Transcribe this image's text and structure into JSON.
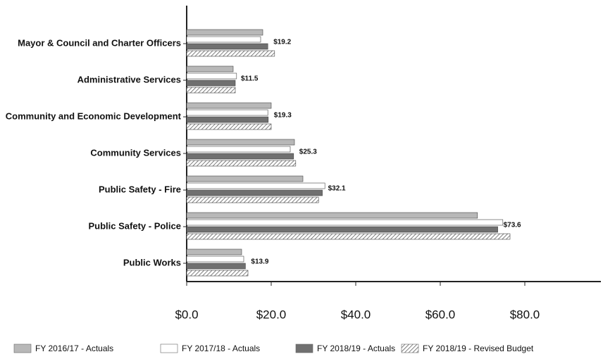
{
  "chart_data": {
    "type": "hbar",
    "categories": [
      "Mayor & Council and Charter Officers",
      "Administrative Services",
      "Community and Economic Development",
      "Community Services",
      "Public Safety - Fire",
      "Public Safety - Police",
      "Public Works"
    ],
    "series": [
      {
        "name": "FY 2016/17 - Actuals",
        "color": "#b8b8b8",
        "values": [
          18.0,
          11.0,
          20.0,
          25.5,
          27.5,
          68.8,
          13.0
        ]
      },
      {
        "name": "FY 2017/18 - Actuals",
        "color": "#ffffff",
        "values": [
          17.5,
          11.8,
          19.2,
          24.5,
          32.7,
          74.8,
          13.5
        ]
      },
      {
        "name": "FY 2018/19 - Actuals",
        "color": "#707070",
        "values": [
          19.2,
          11.5,
          19.3,
          25.3,
          32.1,
          73.6,
          13.9
        ],
        "value_labels": [
          "$19.2",
          "$11.5",
          "$19.3",
          "$25.3",
          "$32.1",
          "$73.6",
          "$13.9"
        ]
      },
      {
        "name": "FY 2018/19 - Revised Budget",
        "color": "#9a9a9a",
        "values": [
          20.8,
          11.5,
          20.0,
          25.8,
          31.2,
          76.5,
          14.5
        ]
      }
    ],
    "xlim": [
      0,
      98
    ],
    "xticks": [
      {
        "value": 0,
        "label": "$0.0"
      },
      {
        "value": 20,
        "label": "$20.0"
      },
      {
        "value": 40,
        "label": "$40.0"
      },
      {
        "value": 60,
        "label": "$60.0"
      },
      {
        "value": 80,
        "label": "$80.0"
      }
    ],
    "legend": "bottom"
  }
}
